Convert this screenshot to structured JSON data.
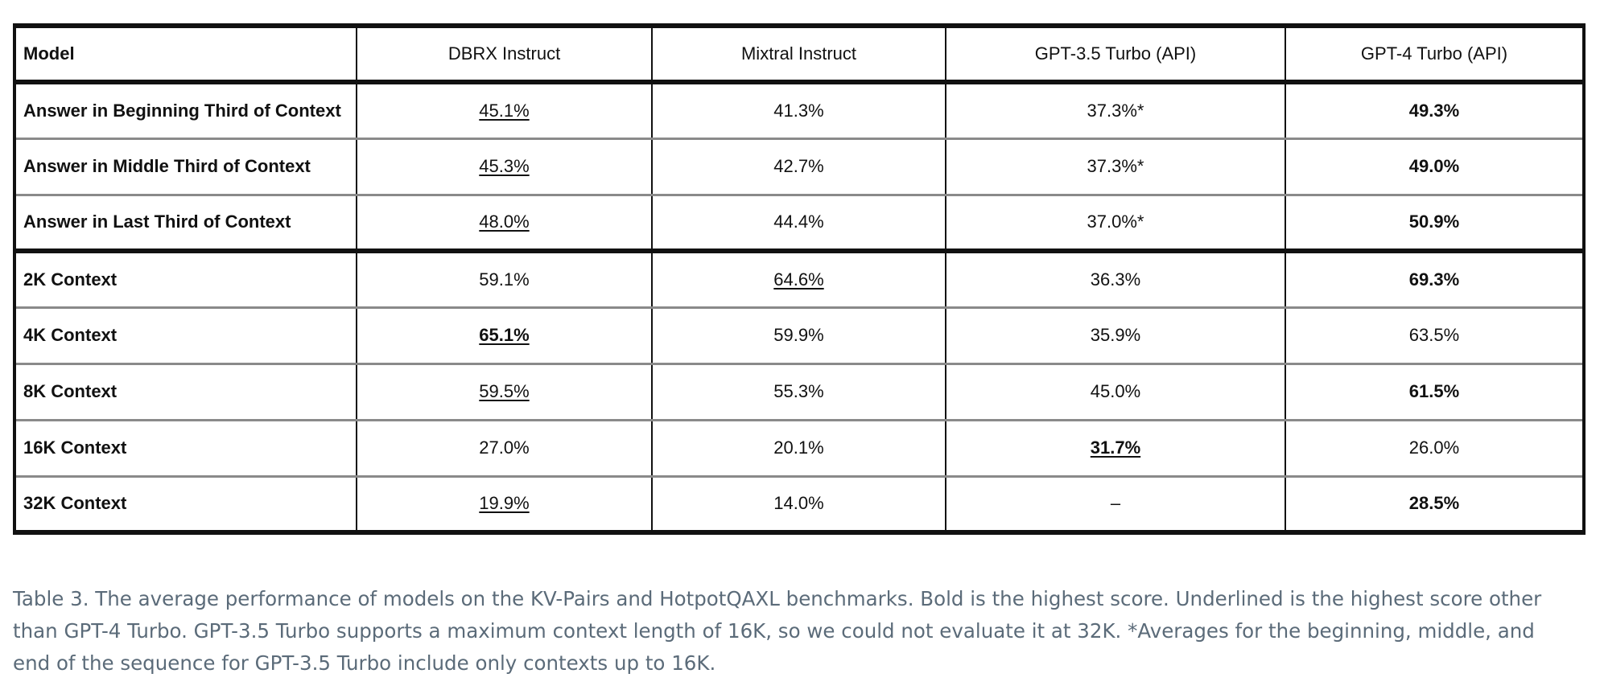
{
  "table": {
    "headers": [
      "Model",
      "DBRX Instruct",
      "Mixtral Instruct",
      "GPT-3.5 Turbo (API)",
      "GPT-4 Turbo (API)"
    ],
    "rows": [
      {
        "label": "Answer in Beginning Third of Context",
        "cells": [
          {
            "value": "45.1%",
            "bold": false,
            "underline": true
          },
          {
            "value": "41.3%",
            "bold": false,
            "underline": false
          },
          {
            "value": "37.3%*",
            "bold": false,
            "underline": false
          },
          {
            "value": "49.3%",
            "bold": true,
            "underline": false
          }
        ]
      },
      {
        "label": "Answer in Middle Third of Context",
        "cells": [
          {
            "value": "45.3%",
            "bold": false,
            "underline": true
          },
          {
            "value": "42.7%",
            "bold": false,
            "underline": false
          },
          {
            "value": "37.3%*",
            "bold": false,
            "underline": false
          },
          {
            "value": "49.0%",
            "bold": true,
            "underline": false
          }
        ]
      },
      {
        "label": "Answer in Last Third of Context",
        "cells": [
          {
            "value": "48.0%",
            "bold": false,
            "underline": true
          },
          {
            "value": "44.4%",
            "bold": false,
            "underline": false
          },
          {
            "value": "37.0%*",
            "bold": false,
            "underline": false
          },
          {
            "value": "50.9%",
            "bold": true,
            "underline": false
          }
        ]
      },
      {
        "label": "2K Context",
        "cells": [
          {
            "value": "59.1%",
            "bold": false,
            "underline": false
          },
          {
            "value": "64.6%",
            "bold": false,
            "underline": true
          },
          {
            "value": "36.3%",
            "bold": false,
            "underline": false
          },
          {
            "value": "69.3%",
            "bold": true,
            "underline": false
          }
        ]
      },
      {
        "label": "4K Context",
        "cells": [
          {
            "value": "65.1%",
            "bold": true,
            "underline": true
          },
          {
            "value": "59.9%",
            "bold": false,
            "underline": false
          },
          {
            "value": "35.9%",
            "bold": false,
            "underline": false
          },
          {
            "value": "63.5%",
            "bold": false,
            "underline": false
          }
        ]
      },
      {
        "label": "8K Context",
        "cells": [
          {
            "value": "59.5%",
            "bold": false,
            "underline": true
          },
          {
            "value": "55.3%",
            "bold": false,
            "underline": false
          },
          {
            "value": "45.0%",
            "bold": false,
            "underline": false
          },
          {
            "value": "61.5%",
            "bold": true,
            "underline": false
          }
        ]
      },
      {
        "label": "16K Context",
        "cells": [
          {
            "value": "27.0%",
            "bold": false,
            "underline": false
          },
          {
            "value": "20.1%",
            "bold": false,
            "underline": false
          },
          {
            "value": "31.7%",
            "bold": true,
            "underline": true
          },
          {
            "value": "26.0%",
            "bold": false,
            "underline": false
          }
        ]
      },
      {
        "label": "32K Context",
        "cells": [
          {
            "value": "19.9%",
            "bold": false,
            "underline": true
          },
          {
            "value": "14.0%",
            "bold": false,
            "underline": false
          },
          {
            "value": "–",
            "bold": false,
            "underline": false
          },
          {
            "value": "28.5%",
            "bold": true,
            "underline": false
          }
        ]
      }
    ]
  },
  "caption": {
    "text": "Table 3. The average performance of models on the KV-Pairs and HotpotQAXL benchmarks. Bold is the highest score. Underlined is the highest score other than GPT-4 Turbo. GPT-3.5 Turbo supports a maximum context length of 16K, so we could not evaluate it at 32K. *Averages for the beginning, middle, and end of the sequence for GPT-3.5 Turbo include only contexts up to 16K."
  },
  "colors": {
    "rule_dark": "#111111",
    "rule_grey": "#8a8a8a",
    "caption_text": "#5b6b79"
  }
}
